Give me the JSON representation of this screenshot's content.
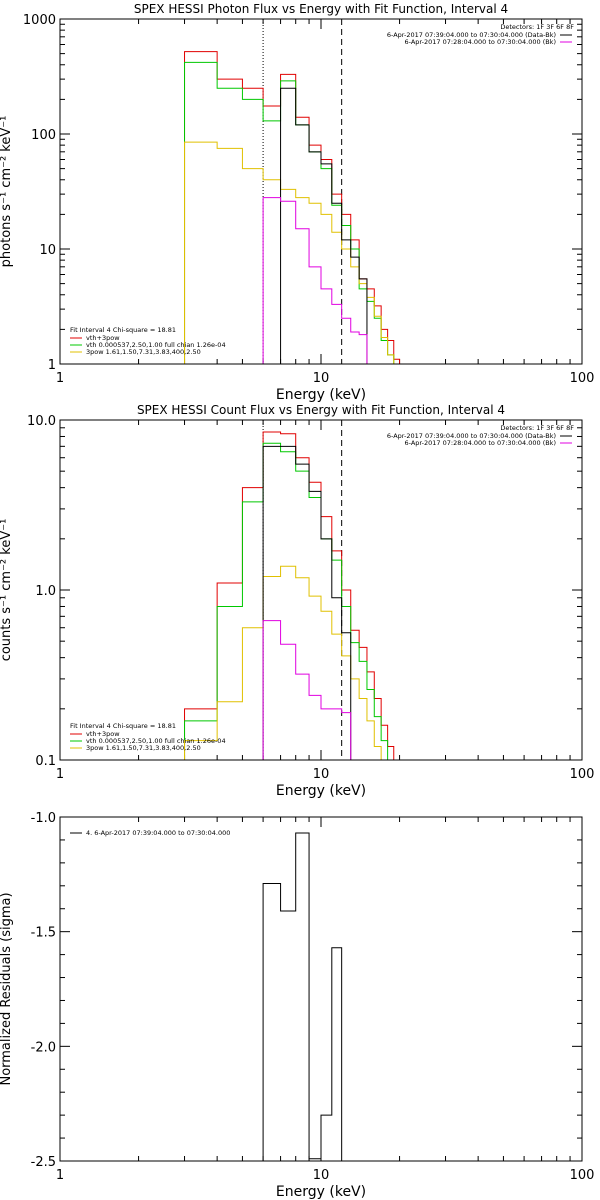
{
  "colors": {
    "black": "#000000",
    "red": "#e00000",
    "green": "#00c800",
    "yellow": "#e0c000",
    "magenta": "#e000e0"
  },
  "chart_data": [
    {
      "id": "photon",
      "type": "line",
      "title": "SPEX HESSI Photon Flux vs Energy with Fit Function, Interval 4",
      "xlabel": "Energy (keV)",
      "ylabel": "photons s⁻¹ cm⁻² keV⁻¹",
      "xscale": "log",
      "yscale": "log",
      "xlim": [
        1,
        100
      ],
      "ylim": [
        1,
        1000
      ],
      "xticks": [
        "1",
        "10",
        "100"
      ],
      "yticks": [
        "1",
        "10",
        "100",
        "1000"
      ],
      "detectors": "Detectors: 1F 3F 6F 8F",
      "legend_top": [
        {
          "text": "6-Apr-2017 07:39:04.000 to 07:30:04.000 (Data-Bk)",
          "color": "black"
        },
        {
          "text": "6-Apr-2017 07:28:04.000 to 07:30:04.000 (Bk)",
          "color": "magenta"
        }
      ],
      "fit_text": "Fit Interval  4   Chi-square = 18.81",
      "legend_fit": [
        {
          "text": "vth+3pow",
          "color": "red"
        },
        {
          "text": "vth 0.000537,2.50,1.00   full chian 1.26e-04",
          "color": "green"
        },
        {
          "text": "3pow  1.61,1.50,7.31,3.83,400,2.50",
          "color": "yellow"
        }
      ],
      "vlines": [
        {
          "x": 6,
          "style": "dotted"
        },
        {
          "x": 12,
          "style": "dashed"
        }
      ],
      "edges": [
        3,
        4,
        5,
        6,
        7,
        8,
        9,
        10,
        11,
        12,
        13,
        14,
        15,
        16,
        17,
        18,
        19,
        20,
        21
      ],
      "series": [
        {
          "name": "vth+3pow",
          "color": "red",
          "values": [
            520,
            300,
            250,
            175,
            330,
            140,
            80,
            60,
            30,
            20,
            12,
            5.5,
            4.5,
            3.2,
            2.0,
            1.6,
            1.1,
            null
          ]
        },
        {
          "name": "vth",
          "color": "green",
          "values": [
            420,
            250,
            200,
            130,
            290,
            120,
            70,
            50,
            24,
            16,
            10,
            4.5,
            3.5,
            2.5,
            1.6,
            1.2,
            null,
            null
          ]
        },
        {
          "name": "3pow",
          "color": "yellow",
          "values": [
            85,
            75,
            50,
            40,
            33,
            28,
            25,
            20,
            14,
            10,
            7,
            5,
            3.8,
            2.6,
            1.7,
            1.2,
            null,
            null
          ]
        },
        {
          "name": "Data-Bk",
          "color": "black",
          "values": [
            null,
            null,
            null,
            null,
            250,
            120,
            70,
            55,
            25,
            12,
            8.5,
            5.5,
            null,
            null,
            null,
            null,
            null,
            null
          ]
        },
        {
          "name": "Bk",
          "color": "magenta",
          "values": [
            null,
            null,
            null,
            28,
            26,
            15,
            7,
            4.5,
            3.3,
            2.5,
            1.9,
            1.8,
            null,
            null,
            null,
            null,
            null,
            null
          ]
        }
      ]
    },
    {
      "id": "count",
      "type": "line",
      "title": "SPEX HESSI Count Flux vs Energy with Fit Function, Interval 4",
      "xlabel": "Energy (keV)",
      "ylabel": "counts s⁻¹ cm⁻² keV⁻¹",
      "xscale": "log",
      "yscale": "log",
      "xlim": [
        1,
        100
      ],
      "ylim": [
        0.1,
        10
      ],
      "xticks": [
        "1",
        "10",
        "100"
      ],
      "yticks": [
        "0.1",
        "1.0",
        "10.0"
      ],
      "detectors": "Detectors: 1F 3F 6F 8F",
      "legend_top": [
        {
          "text": "6-Apr-2017 07:39:04.000 to 07:30:04.000 (Data-Bk)",
          "color": "black"
        },
        {
          "text": "6-Apr-2017 07:28:04.000 to 07:30:04.000 (Bk)",
          "color": "magenta"
        }
      ],
      "fit_text": "Fit Interval  4   Chi-square = 18.81",
      "legend_fit": [
        {
          "text": "vth+3pow",
          "color": "red"
        },
        {
          "text": "vth 0.000537,2.50,1.00   full chian 1.26e-04",
          "color": "green"
        },
        {
          "text": "3pow  1.61,1.50,7.31,3.83,400,2.50",
          "color": "yellow"
        }
      ],
      "vlines": [
        {
          "x": 6,
          "style": "dotted"
        },
        {
          "x": 12,
          "style": "dashed"
        }
      ],
      "edges": [
        3,
        4,
        5,
        6,
        7,
        8,
        9,
        10,
        11,
        12,
        13,
        14,
        15,
        16,
        17,
        18,
        19,
        20,
        21
      ],
      "series": [
        {
          "name": "vth+3pow",
          "color": "red",
          "values": [
            0.2,
            1.1,
            4.0,
            8.5,
            8.3,
            6.0,
            4.3,
            2.7,
            1.7,
            1.0,
            0.58,
            0.46,
            0.33,
            0.23,
            0.16,
            0.12,
            0.1,
            null
          ]
        },
        {
          "name": "vth",
          "color": "green",
          "values": [
            0.17,
            0.8,
            3.3,
            7.3,
            6.5,
            5.0,
            3.5,
            2.0,
            1.5,
            0.8,
            0.49,
            0.38,
            0.26,
            0.18,
            0.13,
            null,
            null,
            null
          ]
        },
        {
          "name": "3pow",
          "color": "yellow",
          "values": [
            0.13,
            0.22,
            0.6,
            1.2,
            1.38,
            1.18,
            0.92,
            0.75,
            0.55,
            0.41,
            0.3,
            0.23,
            0.17,
            0.12,
            null,
            null,
            null,
            null
          ]
        },
        {
          "name": "Data-Bk",
          "color": "black",
          "values": [
            null,
            null,
            null,
            7.0,
            7.0,
            5.5,
            3.8,
            2.0,
            0.9,
            0.56,
            null,
            null,
            null,
            null,
            null,
            null,
            null,
            null
          ]
        },
        {
          "name": "Bk",
          "color": "magenta",
          "values": [
            null,
            null,
            null,
            0.66,
            0.48,
            0.32,
            0.24,
            0.2,
            0.2,
            0.19,
            null,
            null,
            null,
            null,
            null,
            null,
            null,
            null
          ]
        }
      ]
    },
    {
      "id": "resid",
      "type": "line",
      "title": "",
      "xlabel": "Energy (keV)",
      "ylabel": "Normalized Residuals (sigma)",
      "xscale": "log",
      "yscale": "linear",
      "xlim": [
        1,
        100
      ],
      "ylim": [
        -2.5,
        -1.0
      ],
      "xticks": [
        "1",
        "10",
        "100"
      ],
      "yticks": [
        "-2.5",
        "-2.0",
        "-1.5",
        "-1.0"
      ],
      "legend_top": [
        {
          "text": "4.  6-Apr-2017 07:39:04.000 to 07:30:04.000",
          "color": "black"
        }
      ],
      "edges": [
        6,
        7,
        8,
        9,
        10,
        11,
        12
      ],
      "series": [
        {
          "name": "",
          "color": "black",
          "values": [
            -1.29,
            -1.41,
            -1.07,
            -2.49,
            -2.3,
            -1.57
          ]
        }
      ]
    }
  ]
}
